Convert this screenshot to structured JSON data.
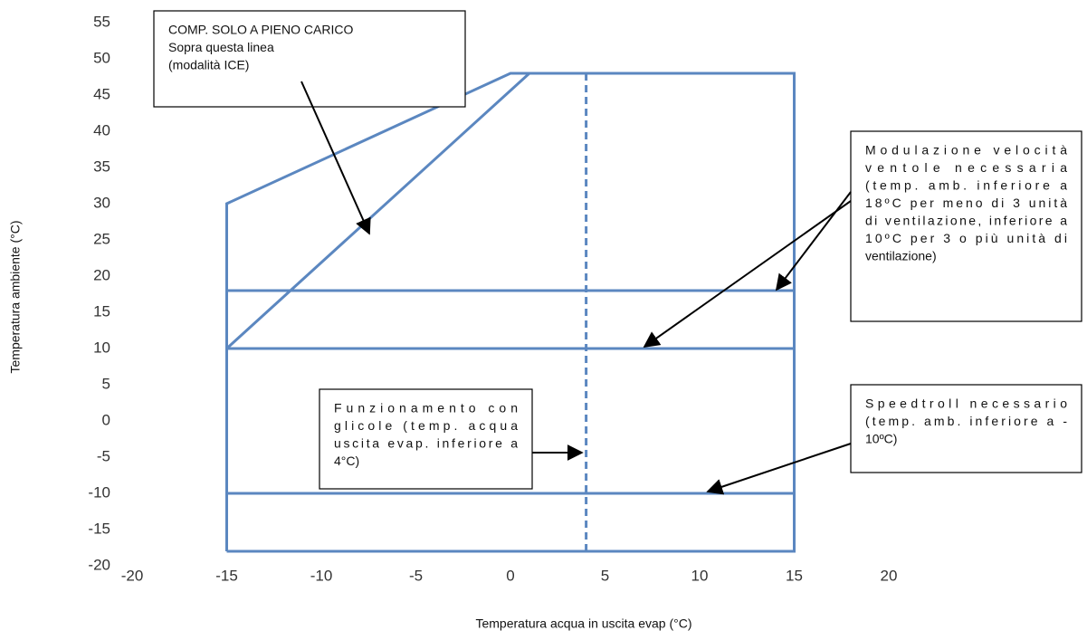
{
  "chart_data": {
    "type": "line",
    "x_label": "Temperatura acqua in uscita evap (°C)",
    "y_label": "Temperatura ambiente (°C)",
    "xlim": [
      -20,
      20
    ],
    "xticks": [
      -20,
      -15,
      -10,
      -5,
      0,
      5,
      10,
      15,
      20
    ],
    "ylim": [
      -20,
      55
    ],
    "yticks": [
      -20,
      -15,
      -10,
      -5,
      0,
      5,
      10,
      15,
      20,
      25,
      30,
      35,
      40,
      45,
      50,
      55
    ],
    "grid": false,
    "series": [
      {
        "color": "#5b87c0",
        "x": [
          -15,
          -15,
          0,
          15,
          15,
          -15
        ],
        "values": [
          -18,
          30,
          48,
          48,
          -18,
          -18
        ]
      },
      {
        "color": "#5b87c0",
        "x": [
          -15,
          1
        ],
        "values": [
          10,
          48
        ]
      },
      {
        "color": "#5b87c0",
        "x": [
          -15,
          15
        ],
        "values": [
          18,
          18
        ]
      },
      {
        "color": "#5b87c0",
        "x": [
          -15,
          15
        ],
        "values": [
          10,
          10
        ]
      },
      {
        "color": "#5b87c0",
        "x": [
          -15,
          15
        ],
        "values": [
          -10,
          -10
        ]
      },
      {
        "color": "#5b87c0",
        "x": [
          4,
          4
        ],
        "values": [
          48,
          -18
        ],
        "dashed": true
      }
    ],
    "annotations": [
      {
        "lines": [
          "COMP. SOLO A PIENO CARICO",
          "Sopra questa linea",
          "(modalità ICE)"
        ]
      },
      {
        "lines": [
          "Modulazione velocità",
          "ventole necessaria",
          "(temp. amb. inferiore a",
          "18ºC per meno di 3 unità",
          "di ventilazione, inferiore a",
          "10ºC per 3  o più unità di",
          "ventilazione)"
        ]
      },
      {
        "lines": [
          "Funzionamento con",
          "glicole (temp. acqua",
          "uscita evap. inferiore a",
          "4°C)"
        ]
      },
      {
        "lines": [
          "Speedtroll necessario",
          "(temp. amb. inferiore a -",
          "10ºC)"
        ]
      }
    ]
  }
}
